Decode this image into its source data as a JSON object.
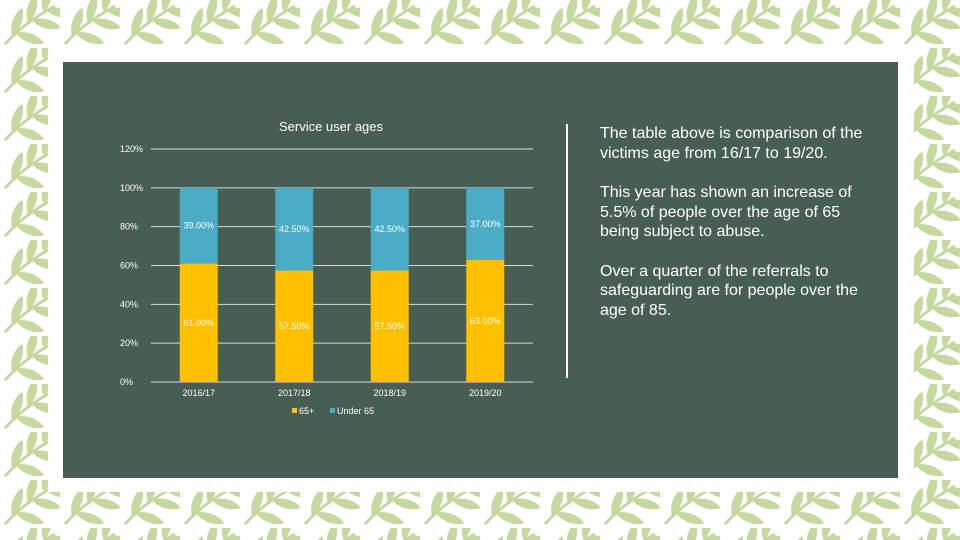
{
  "colors": {
    "panel": "#465f52",
    "frame_leaf": "#c3d9a0",
    "series_65plus": "#ffc000",
    "series_under65": "#4bacc6",
    "text": "#ffffff"
  },
  "chart_data": {
    "type": "bar",
    "stacked": true,
    "title": "Service user ages",
    "categories": [
      "2016/17",
      "2017/18",
      "2018/19",
      "2019/20"
    ],
    "series": [
      {
        "name": "65+",
        "values": [
          61.0,
          57.5,
          57.5,
          63.0
        ],
        "labels": [
          "61.00%",
          "57.50%",
          "57.50%",
          "63.00%"
        ]
      },
      {
        "name": "Under 65",
        "values": [
          39.0,
          42.5,
          42.5,
          37.0
        ],
        "labels": [
          "39.00%",
          "42.50%",
          "42.50%",
          "37.00%"
        ]
      }
    ],
    "ylim": [
      0,
      120
    ],
    "yticks": [
      0,
      20,
      40,
      60,
      80,
      100,
      120
    ],
    "ytick_labels": [
      "0%",
      "20%",
      "40%",
      "60%",
      "80%",
      "100%",
      "120%"
    ],
    "grid": true,
    "legend": "bottom"
  },
  "paragraphs": [
    "The table above is comparison of the victims age from 16/17 to 19/20.",
    "This year has shown an increase of 5.5% of people over the age of 65 being subject to abuse.",
    "Over a quarter of the referrals to safeguarding are for people over the age of 85."
  ]
}
